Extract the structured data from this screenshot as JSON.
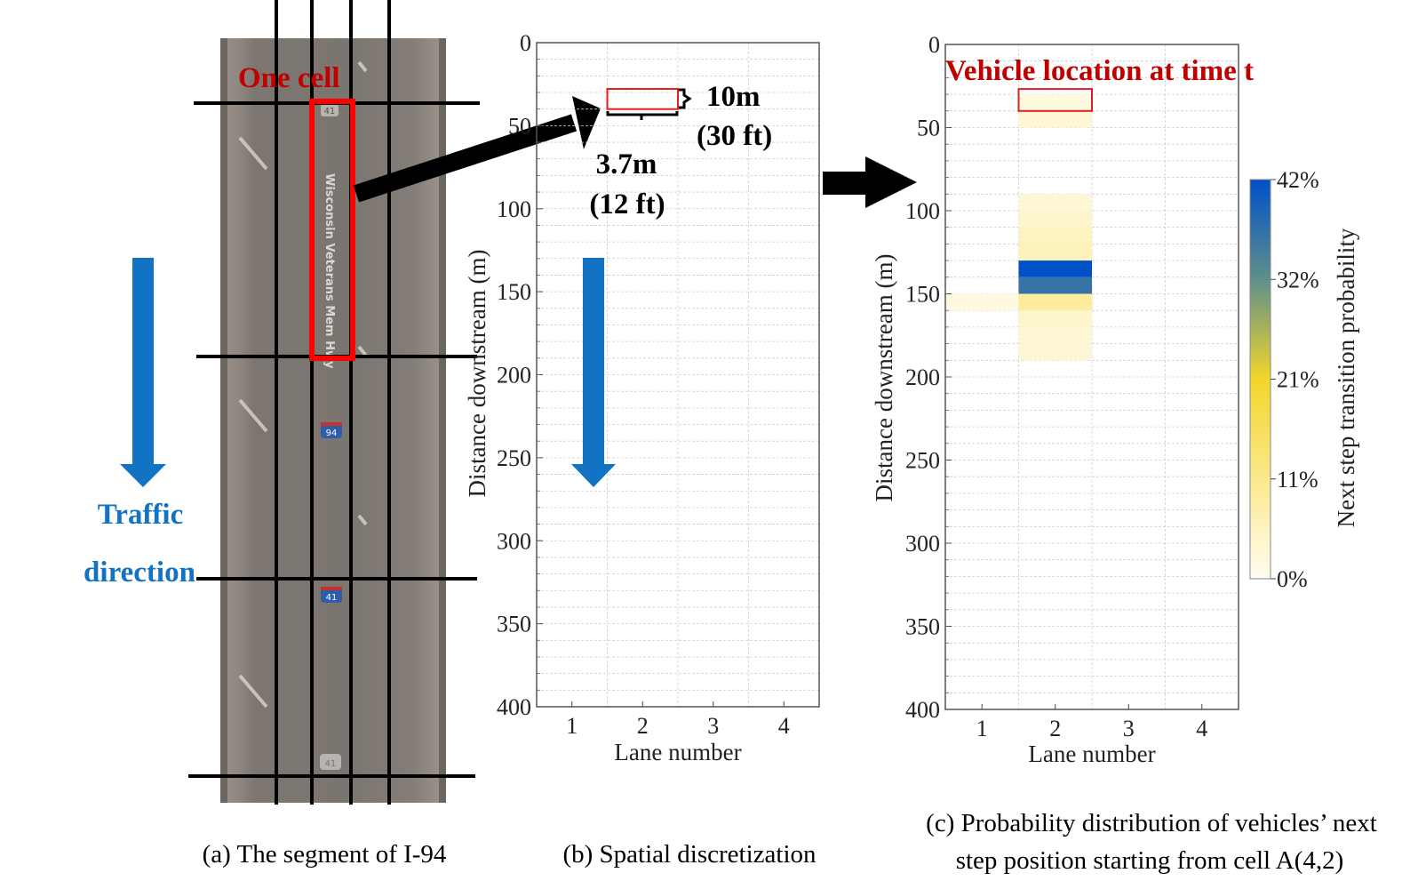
{
  "panel_a": {
    "caption": "(a) The segment of I-94",
    "cell_label": "One cell",
    "road_name": "Wisconsin Veterans Mem Hwy",
    "shields": [
      "41",
      "94",
      "41",
      "41"
    ],
    "traffic_label_1": "Traffic",
    "traffic_label_2": "direction"
  },
  "panel_b": {
    "caption": "(b) Spatial discretization",
    "dim_length_1": "10m",
    "dim_length_2": "(30 ft)",
    "dim_width_1": "3.7m",
    "dim_width_2": "(12 ft)"
  },
  "panel_c": {
    "caption_line1": "(c) Probability distribution of vehicles’ next",
    "caption_line2": "step position starting from cell A(4,2)",
    "title": "Vehicle location at time t",
    "colorbar_label": "Next step transition probability",
    "colorbar_ticks": [
      "42%",
      "32%",
      "21%",
      "11%",
      "0%"
    ]
  },
  "chart_data": [
    {
      "type": "grid",
      "xlabel": "Lane number",
      "ylabel": "Distance downstream (m)",
      "xticks": [
        "1",
        "2",
        "3",
        "4"
      ],
      "yticks": [
        "0",
        "50",
        "100",
        "150",
        "200",
        "250",
        "300",
        "350",
        "400"
      ],
      "xlim": [
        0.5,
        4.5
      ],
      "ylim": [
        400,
        0
      ],
      "cell_size_m": 10,
      "highlight_cell": {
        "lane": 2,
        "start_m": 30,
        "end_m": 40
      }
    },
    {
      "type": "heatmap",
      "xlabel": "Lane number",
      "ylabel": "Distance downstream (m)",
      "xticks": [
        "1",
        "2",
        "3",
        "4"
      ],
      "yticks": [
        "0",
        "50",
        "100",
        "150",
        "200",
        "250",
        "300",
        "350",
        "400"
      ],
      "xlim": [
        0.5,
        4.5
      ],
      "ylim": [
        400,
        0
      ],
      "colorbar_range": [
        0,
        42
      ],
      "current_cell": {
        "lane": 2,
        "start_m": 30,
        "end_m": 40
      },
      "cells": [
        {
          "lane": 2,
          "start_m": 30,
          "end_m": 40,
          "p": 2
        },
        {
          "lane": 2,
          "start_m": 40,
          "end_m": 50,
          "p": 3
        },
        {
          "lane": 2,
          "start_m": 90,
          "end_m": 100,
          "p": 3
        },
        {
          "lane": 2,
          "start_m": 100,
          "end_m": 110,
          "p": 4
        },
        {
          "lane": 2,
          "start_m": 110,
          "end_m": 120,
          "p": 5
        },
        {
          "lane": 2,
          "start_m": 120,
          "end_m": 130,
          "p": 6
        },
        {
          "lane": 2,
          "start_m": 130,
          "end_m": 140,
          "p": 42
        },
        {
          "lane": 2,
          "start_m": 140,
          "end_m": 150,
          "p": 36
        },
        {
          "lane": 2,
          "start_m": 150,
          "end_m": 160,
          "p": 9
        },
        {
          "lane": 2,
          "start_m": 160,
          "end_m": 170,
          "p": 4
        },
        {
          "lane": 2,
          "start_m": 170,
          "end_m": 180,
          "p": 3
        },
        {
          "lane": 2,
          "start_m": 180,
          "end_m": 190,
          "p": 3
        },
        {
          "lane": 1,
          "start_m": 150,
          "end_m": 160,
          "p": 2
        }
      ]
    }
  ]
}
